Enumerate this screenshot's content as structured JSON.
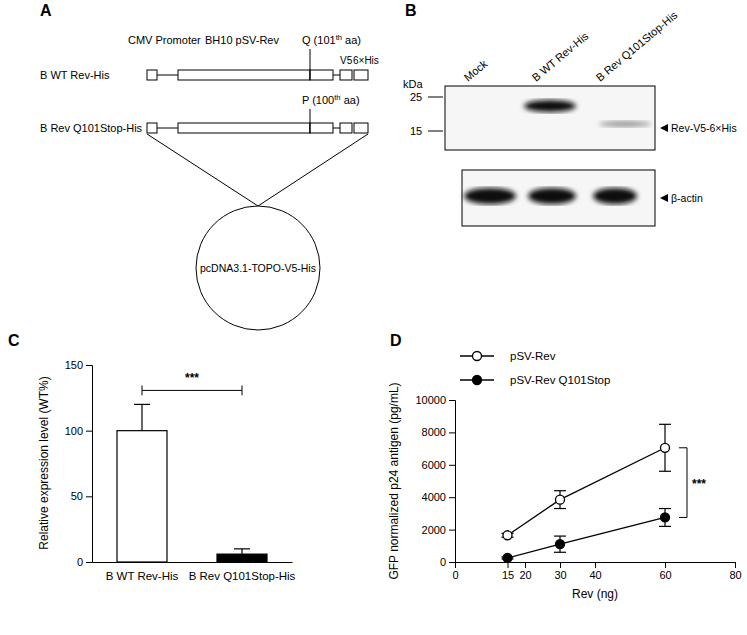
{
  "panels": {
    "A": {
      "label": "A",
      "constructs": [
        "B WT Rev-His",
        "B Rev Q101Stop-His"
      ],
      "promoter": "CMV Promoter",
      "gene": "BH10 pSV-Rev",
      "q101": [
        "Q (101",
        "th",
        " aa)"
      ],
      "p100": [
        "P (100",
        "th",
        " aa)"
      ],
      "tags": [
        "V5",
        "6×His"
      ],
      "vector": "pcDNA3.1-TOPO-V5-His"
    },
    "B": {
      "label": "B",
      "lanes": [
        "Mock",
        "B WT Rev-His",
        "B Rev Q101Stop-His"
      ],
      "unit": "kDa",
      "markers": [
        25,
        15
      ],
      "bands": [
        "Rev-V5-6×His",
        "β-actin"
      ]
    }
  },
  "chart_data": [
    {
      "panel_label": "C",
      "type": "bar",
      "y_label": "Relative expression level (WT%)",
      "categories": [
        "B WT Rev-His",
        "B Rev Q101Stop-His"
      ],
      "values": [
        100,
        6
      ],
      "errors": [
        20,
        4
      ],
      "colors": [
        "#ffffff",
        "#000000"
      ],
      "ylim": [
        0,
        150
      ],
      "yticks": [
        0,
        50,
        100,
        150
      ],
      "annotations": [
        {
          "text": "***"
        }
      ]
    },
    {
      "panel_label": "D",
      "type": "line",
      "x_label": "Rev (ng)",
      "y_label": "GFP normalized p24 antigen (pg/mL)",
      "x": [
        15,
        30,
        60
      ],
      "series": [
        {
          "name": "pSV-Rev",
          "color": "#000000",
          "marker": "open-circle",
          "values": [
            1650,
            3850,
            7050
          ],
          "errors": [
            120,
            550,
            1450
          ]
        },
        {
          "name": "pSV-Rev Q101Stop",
          "color": "#000000",
          "marker": "circle",
          "values": [
            250,
            1100,
            2750
          ],
          "errors": [
            60,
            500,
            550
          ]
        }
      ],
      "xlim": [
        0,
        80
      ],
      "xticks": [
        0,
        15,
        20,
        30,
        40,
        60,
        80
      ],
      "ylim": [
        0,
        10000
      ],
      "yticks": [
        0,
        2000,
        4000,
        6000,
        8000,
        10000
      ],
      "legend": "top-left",
      "annotations": [
        {
          "text": "***"
        }
      ]
    }
  ]
}
